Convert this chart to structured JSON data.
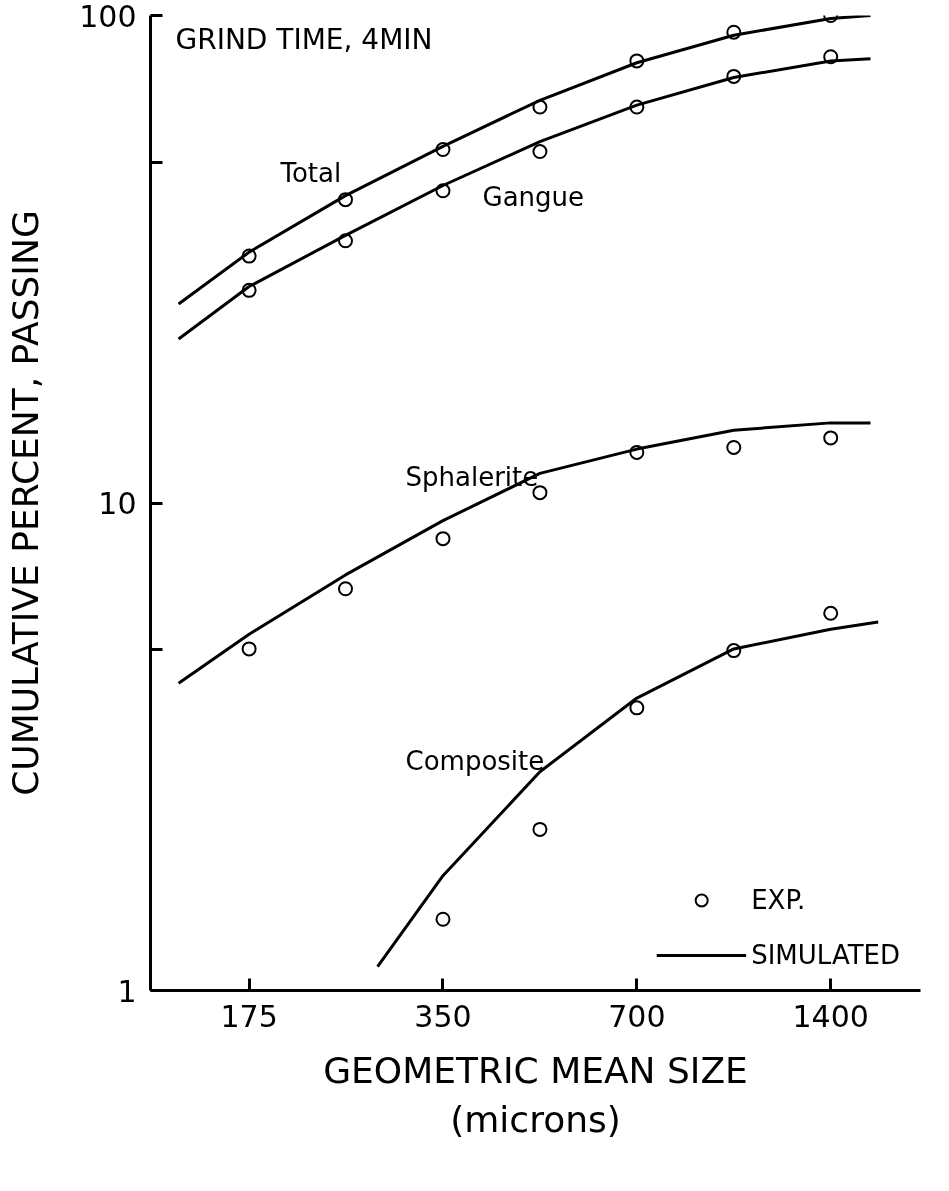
{
  "chart_data": {
    "type": "scatter",
    "title": "GRIND TIME, 4MIN",
    "xlabel": "GEOMETRIC MEAN SIZE\n(microns)",
    "ylabel": "CUMULATIVE PERCENT, PASSING",
    "log": "xy",
    "grid": false,
    "legend": "bottom right",
    "marker": "circle",
    "xlim": [
      123,
      1930
    ],
    "ylim": [
      1,
      100
    ],
    "xticks": [
      175,
      350,
      700,
      1400
    ],
    "yticks": [
      1,
      {
        "value": 5,
        "label": null
      },
      10,
      {
        "value": 50,
        "label": null
      },
      100
    ],
    "annotations": [
      "Total",
      "Gangue",
      "Sphalerite",
      "Composite"
    ],
    "series": [
      {
        "name": "EXP.",
        "color": "#000000",
        "x": [
          175,
          247,
          350,
          495,
          700,
          990,
          1400,
          175,
          247,
          350,
          495,
          700,
          990,
          1400,
          175,
          247,
          350,
          495,
          700,
          990,
          1400,
          350,
          495,
          700,
          990,
          1400
        ],
        "values": [
          32.1,
          41.9,
          53.1,
          64.9,
          80.7,
          92.4,
          100,
          27.3,
          34.5,
          43.7,
          52.6,
          64.9,
          75.0,
          82.3,
          5.02,
          6.67,
          8.45,
          10.5,
          12.7,
          13.0,
          13.6,
          1.4,
          2.14,
          3.8,
          4.98,
          5.94
        ]
      },
      {
        "name": "SIMULATED",
        "type": "line",
        "marker": "none",
        "color": "#000000",
        "line_style": "solid",
        "x": [
          136,
          175,
          247,
          350,
          495,
          700,
          990,
          1400,
          1614
        ],
        "values": [
          25.6,
          32.7,
          42.7,
          53.9,
          67.0,
          80.0,
          91.1,
          98.6,
          100
        ]
      },
      {
        "type": "line",
        "marker": "none",
        "color": "#000000",
        "line_style": "solid",
        "x": [
          136,
          175,
          247,
          350,
          495,
          700,
          990,
          1400,
          1614
        ],
        "values": [
          21.7,
          27.8,
          35.4,
          44.8,
          55.1,
          65.5,
          74.6,
          80.7,
          81.5
        ]
      },
      {
        "type": "line",
        "marker": "none",
        "color": "#000000",
        "line_style": "solid",
        "x": [
          136,
          175,
          247,
          350,
          495,
          700,
          990,
          1400,
          1614
        ],
        "values": [
          4.27,
          5.38,
          7.12,
          9.2,
          11.5,
          12.9,
          14.1,
          14.6,
          14.6
        ]
      },
      {
        "type": "line",
        "marker": "none",
        "color": "#000000",
        "line_style": "solid",
        "x": [
          277,
          350,
          495,
          700,
          990,
          1400,
          1659
        ],
        "values": [
          1.12,
          1.72,
          2.81,
          3.98,
          5.02,
          5.51,
          5.7
        ]
      }
    ]
  }
}
